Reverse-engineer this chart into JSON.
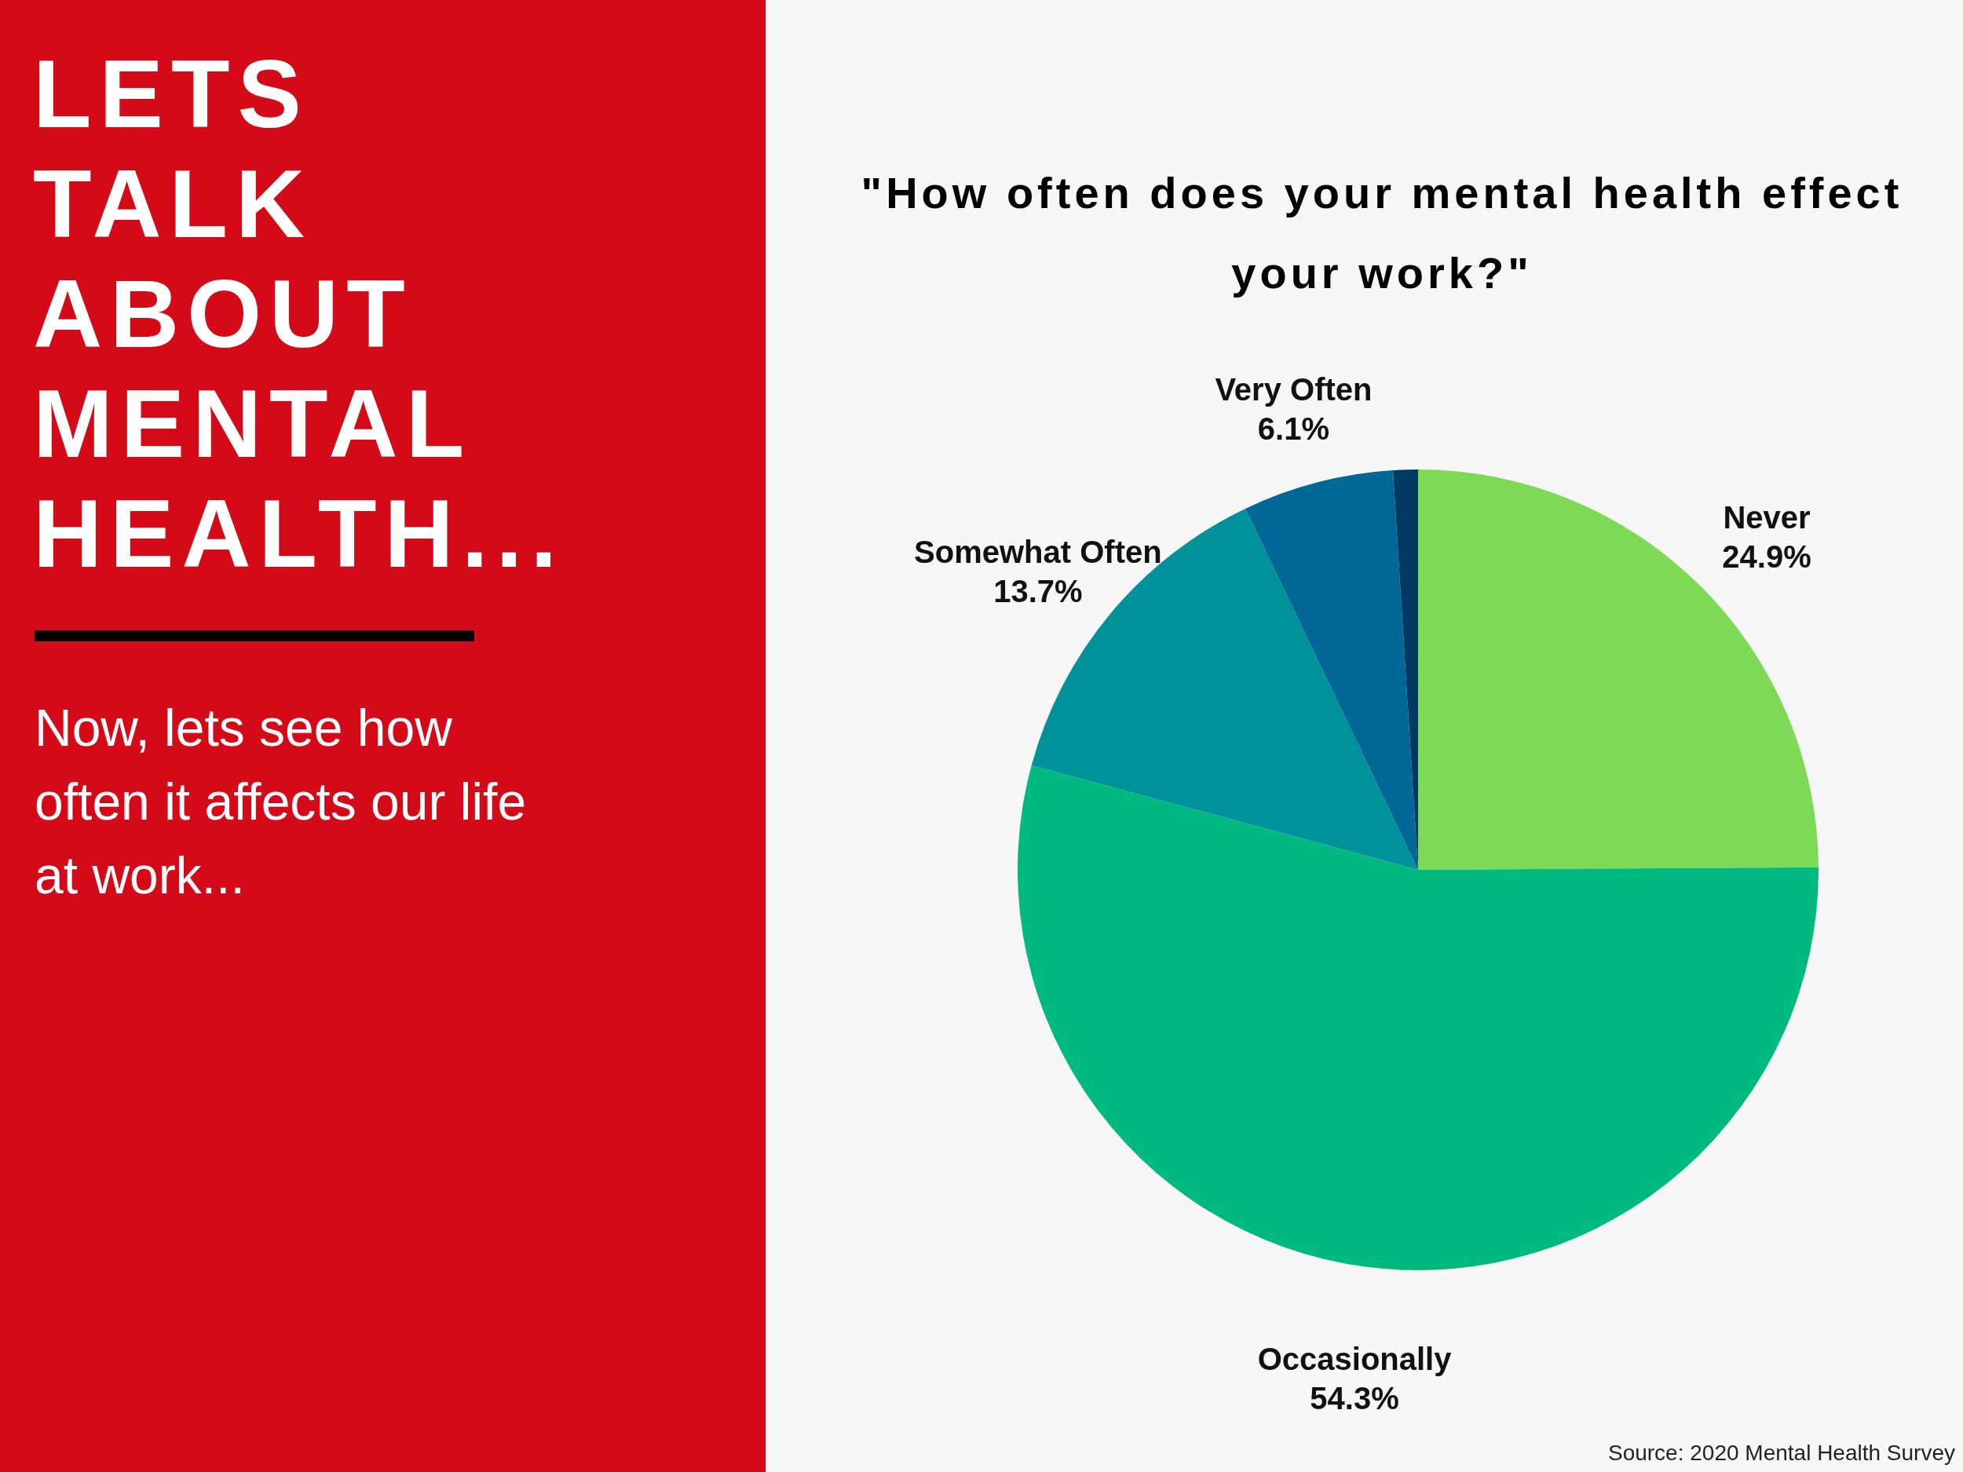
{
  "chart_data": {
    "type": "pie",
    "title": "\"How often does your mental health effect your work?\"",
    "categories": [
      "Never",
      "Occasionally",
      "Somewhat Often",
      "Very Often",
      null
    ],
    "values": [
      24.9,
      54.3,
      13.7,
      6.1,
      1.0
    ],
    "colors": [
      "#7ed957",
      "#00b980",
      "#00929a",
      "#006896",
      "#003a63"
    ],
    "value_labels": [
      "24.9%",
      "54.3%",
      "13.7%",
      "6.1%",
      null
    ],
    "annotations": [
      "LETS TALK ABOUT MENTAL HEALTH...",
      "Now, lets see how often it affects our life at work...",
      "Source: 2020 Mental Health Survey"
    ]
  }
}
